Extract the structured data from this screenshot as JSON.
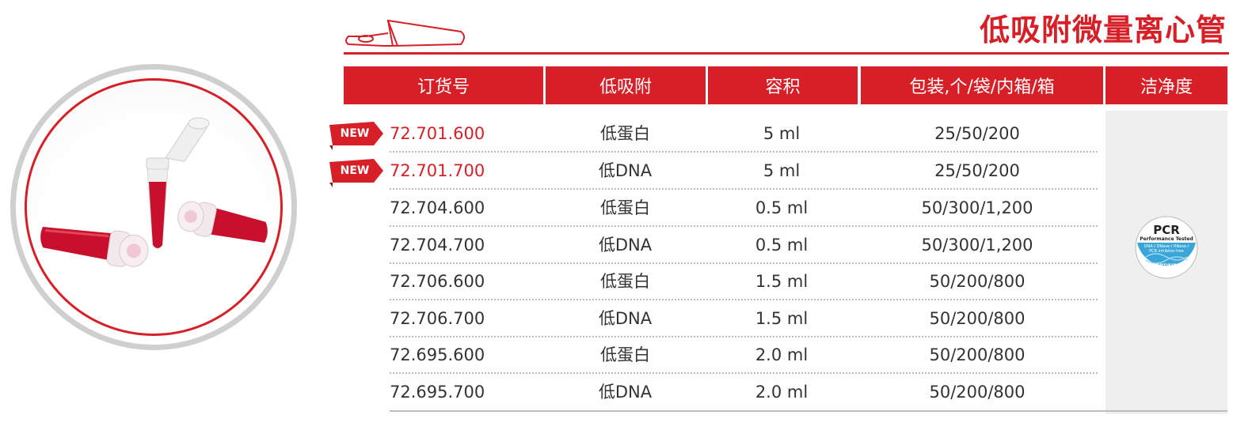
{
  "title": "低吸附微量离心管",
  "columns": [
    "订货号",
    "低吸附",
    "容积",
    "包装,个/袋/内箱/箱",
    "洁净度"
  ],
  "new_badge_label": "NEW",
  "rows": [
    {
      "order_no": "72.701.600",
      "type": "低蛋白",
      "volume": "5 ml",
      "packing": "25/50/200",
      "is_new": true
    },
    {
      "order_no": "72.701.700",
      "type": "低DNA",
      "volume": "5 ml",
      "packing": "25/50/200",
      "is_new": true
    },
    {
      "order_no": "72.704.600",
      "type": "低蛋白",
      "volume": "0.5 ml",
      "packing": "50/300/1,200",
      "is_new": false
    },
    {
      "order_no": "72.704.700",
      "type": "低DNA",
      "volume": "0.5 ml",
      "packing": "50/300/1,200",
      "is_new": false
    },
    {
      "order_no": "72.706.600",
      "type": "低蛋白",
      "volume": "1.5 ml",
      "packing": "50/200/800",
      "is_new": false
    },
    {
      "order_no": "72.706.700",
      "type": "低DNA",
      "volume": "1.5 ml",
      "packing": "50/200/800",
      "is_new": false
    },
    {
      "order_no": "72.695.600",
      "type": "低蛋白",
      "volume": "2.0 ml",
      "packing": "50/200/800",
      "is_new": false
    },
    {
      "order_no": "72.695.700",
      "type": "低DNA",
      "volume": "2.0 ml",
      "packing": "50/200/800",
      "is_new": false
    }
  ],
  "pcr_badge": {
    "main": "PCR",
    "sub": "Performance Tested",
    "free_text": "DNA-/ DNase-/ RNase-/ PCR inhibitor-free",
    "certified": "CERTIFIED"
  },
  "colors": {
    "accent": "#d61f26",
    "text": "#333333",
    "badge_blue": "#3aa6d8"
  }
}
